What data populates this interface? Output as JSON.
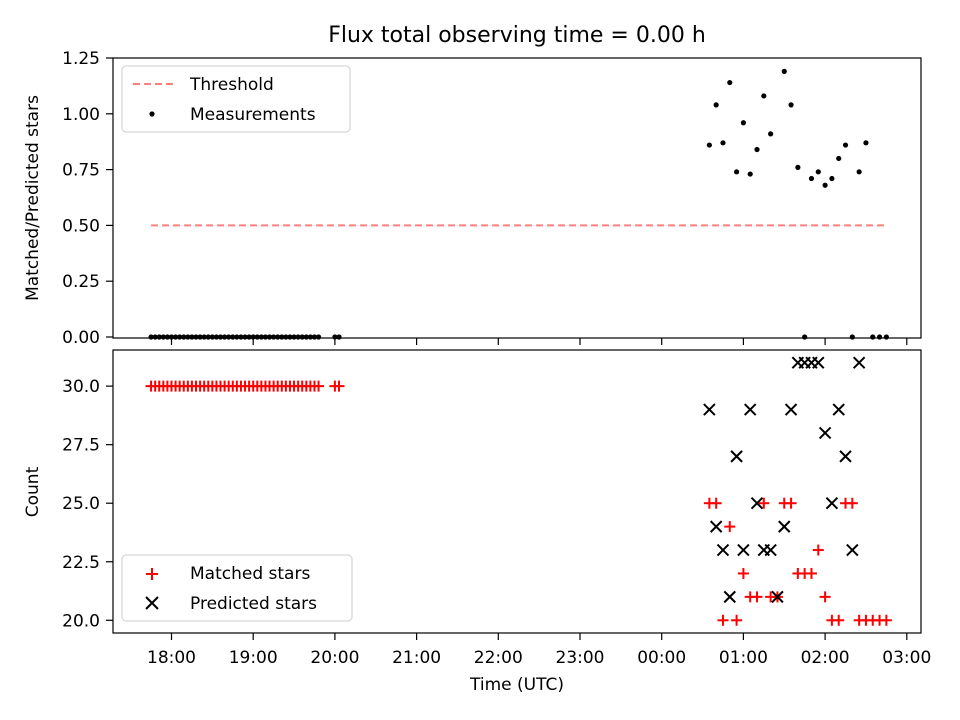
{
  "chart_data": [
    {
      "type": "scatter",
      "title": "Flux total observing time = 0.00 h",
      "ylabel": "Matched/Predicted stars",
      "xlabel": "",
      "ylim": [
        0,
        1.25
      ],
      "yticks": [
        "0.00",
        "0.25",
        "0.50",
        "0.75",
        "1.00",
        "1.25"
      ],
      "legend_position": "top-left",
      "series": [
        {
          "name": "Threshold",
          "kind": "line",
          "style": "dashed",
          "color": "#ff7f7f",
          "x": [
            "17:45",
            "02:45"
          ],
          "y": [
            0.5,
            0.5
          ]
        },
        {
          "name": "Measurements",
          "kind": "scatter",
          "marker": "dot",
          "color": "#000000",
          "x": [
            "17:45",
            "17:48",
            "17:51",
            "17:54",
            "17:57",
            "18:00",
            "18:03",
            "18:06",
            "18:09",
            "18:12",
            "18:15",
            "18:18",
            "18:21",
            "18:24",
            "18:27",
            "18:30",
            "18:33",
            "18:36",
            "18:39",
            "18:42",
            "18:45",
            "18:48",
            "18:51",
            "18:54",
            "18:57",
            "19:00",
            "19:03",
            "19:06",
            "19:09",
            "19:12",
            "19:15",
            "19:18",
            "19:21",
            "19:24",
            "19:27",
            "19:30",
            "19:33",
            "19:36",
            "19:39",
            "19:42",
            "19:45",
            "19:48",
            "20:00",
            "20:03",
            "00:35",
            "00:40",
            "00:45",
            "00:50",
            "00:55",
            "01:00",
            "01:05",
            "01:10",
            "01:15",
            "01:20",
            "01:30",
            "01:35",
            "01:40",
            "01:45",
            "01:50",
            "01:55",
            "02:00",
            "02:05",
            "02:10",
            "02:15",
            "02:20",
            "02:25",
            "02:30",
            "02:35",
            "02:40",
            "02:45"
          ],
          "y": [
            0,
            0,
            0,
            0,
            0,
            0,
            0,
            0,
            0,
            0,
            0,
            0,
            0,
            0,
            0,
            0,
            0,
            0,
            0,
            0,
            0,
            0,
            0,
            0,
            0,
            0,
            0,
            0,
            0,
            0,
            0,
            0,
            0,
            0,
            0,
            0,
            0,
            0,
            0,
            0,
            0,
            0,
            0,
            0,
            0.86,
            1.04,
            0.87,
            1.14,
            0.74,
            0.96,
            0.73,
            0.84,
            1.08,
            0.91,
            1.19,
            1.04,
            0.76,
            0,
            0.71,
            0.74,
            0.68,
            0.71,
            0.8,
            0.86,
            0,
            0.74,
            0.87,
            0,
            0,
            0
          ]
        }
      ]
    },
    {
      "type": "scatter",
      "title": "",
      "ylabel": "Count",
      "xlabel": "Time (UTC)",
      "ylim": [
        19.5,
        31.5
      ],
      "yticks": [
        "20.0",
        "22.5",
        "25.0",
        "27.5",
        "30.0"
      ],
      "xticks": [
        "18:00",
        "19:00",
        "20:00",
        "21:00",
        "22:00",
        "23:00",
        "00:00",
        "01:00",
        "02:00",
        "03:00"
      ],
      "legend_position": "bottom-left",
      "series": [
        {
          "name": "Matched stars",
          "kind": "scatter",
          "marker": "plus",
          "color": "#ff0000",
          "x": [
            "17:45",
            "17:48",
            "17:51",
            "17:54",
            "17:57",
            "18:00",
            "18:03",
            "18:06",
            "18:09",
            "18:12",
            "18:15",
            "18:18",
            "18:21",
            "18:24",
            "18:27",
            "18:30",
            "18:33",
            "18:36",
            "18:39",
            "18:42",
            "18:45",
            "18:48",
            "18:51",
            "18:54",
            "18:57",
            "19:00",
            "19:03",
            "19:06",
            "19:09",
            "19:12",
            "19:15",
            "19:18",
            "19:21",
            "19:24",
            "19:27",
            "19:30",
            "19:33",
            "19:36",
            "19:39",
            "19:42",
            "19:45",
            "19:48",
            "20:00",
            "20:03",
            "00:35",
            "00:40",
            "00:45",
            "00:50",
            "00:55",
            "01:00",
            "01:05",
            "01:10",
            "01:15",
            "01:20",
            "01:25",
            "01:30",
            "01:35",
            "01:40",
            "01:45",
            "01:50",
            "01:55",
            "02:00",
            "02:05",
            "02:10",
            "02:15",
            "02:20",
            "02:25",
            "02:30",
            "02:35",
            "02:40",
            "02:45"
          ],
          "y": [
            30,
            30,
            30,
            30,
            30,
            30,
            30,
            30,
            30,
            30,
            30,
            30,
            30,
            30,
            30,
            30,
            30,
            30,
            30,
            30,
            30,
            30,
            30,
            30,
            30,
            30,
            30,
            30,
            30,
            30,
            30,
            30,
            30,
            30,
            30,
            30,
            30,
            30,
            30,
            30,
            30,
            30,
            30,
            30,
            25,
            25,
            20,
            24,
            20,
            22,
            21,
            21,
            25,
            21,
            21,
            25,
            25,
            22,
            22,
            22,
            23,
            21,
            20,
            20,
            25,
            25,
            20,
            20,
            20,
            20,
            20
          ]
        },
        {
          "name": "Predicted stars",
          "kind": "scatter",
          "marker": "x",
          "color": "#000000",
          "x": [
            "00:35",
            "00:40",
            "00:45",
            "00:50",
            "00:55",
            "01:00",
            "01:05",
            "01:10",
            "01:15",
            "01:20",
            "01:25",
            "01:30",
            "01:35",
            "01:40",
            "01:45",
            "01:50",
            "01:55",
            "02:00",
            "02:05",
            "02:10",
            "02:15",
            "02:20",
            "02:25"
          ],
          "y": [
            29,
            24,
            23,
            21,
            27,
            23,
            29,
            25,
            23,
            23,
            21,
            24,
            29,
            31,
            31,
            31,
            31,
            28,
            25,
            29,
            27,
            23,
            31
          ]
        }
      ]
    }
  ]
}
